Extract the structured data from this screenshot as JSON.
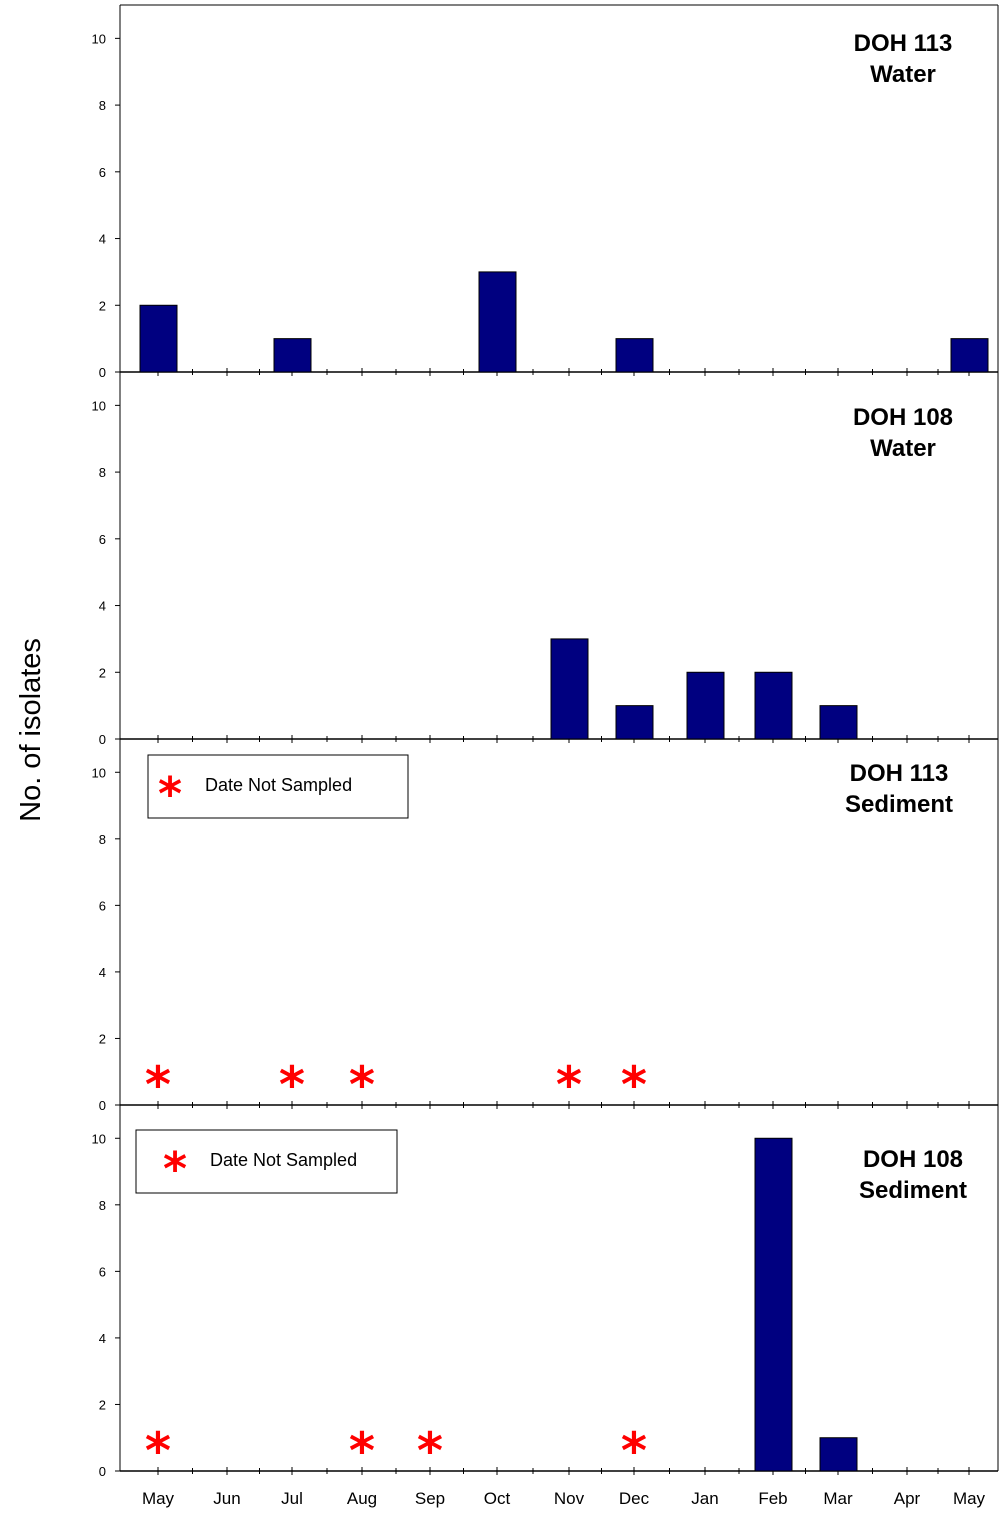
{
  "figure": {
    "ylabel": "No. of isolates"
  },
  "chart_data": [
    {
      "type": "bar",
      "title_lines": [
        "DOH 113",
        "Water"
      ],
      "categories": [
        "May",
        "Jun",
        "Jul",
        "Aug",
        "Sep",
        "Oct",
        "Nov",
        "Dec",
        "Jan",
        "Feb",
        "Mar",
        "Apr",
        "May"
      ],
      "values": [
        2,
        0,
        1,
        0,
        0,
        3,
        0,
        1,
        0,
        0,
        0,
        0,
        1
      ],
      "ylim": [
        0,
        11
      ],
      "yticks": [
        0,
        2,
        4,
        6,
        8,
        10
      ],
      "not_sampled": [],
      "legend": null,
      "bar_color": "#000080"
    },
    {
      "type": "bar",
      "title_lines": [
        "DOH 108",
        "Water"
      ],
      "categories": [
        "May",
        "Jun",
        "Jul",
        "Aug",
        "Sep",
        "Oct",
        "Nov",
        "Dec",
        "Jan",
        "Feb",
        "Mar",
        "Apr",
        "May"
      ],
      "values": [
        0,
        0,
        0,
        0,
        0,
        0,
        3,
        1,
        2,
        2,
        1,
        0,
        0
      ],
      "ylim": [
        0,
        11
      ],
      "yticks": [
        0,
        2,
        4,
        6,
        8,
        10
      ],
      "not_sampled": [],
      "legend": null,
      "bar_color": "#000080"
    },
    {
      "type": "bar",
      "title_lines": [
        "DOH 113",
        "Sediment"
      ],
      "categories": [
        "May",
        "Jun",
        "Jul",
        "Aug",
        "Sep",
        "Oct",
        "Nov",
        "Dec",
        "Jan",
        "Feb",
        "Mar",
        "Apr",
        "May"
      ],
      "values": [
        0,
        0,
        0,
        0,
        0,
        0,
        0,
        0,
        0,
        0,
        0,
        0,
        0
      ],
      "ylim": [
        0,
        11
      ],
      "yticks": [
        0,
        2,
        4,
        6,
        8,
        10
      ],
      "not_sampled": [
        "May",
        "Jul",
        "Aug",
        "Nov",
        "Dec"
      ],
      "legend": "Date Not Sampled",
      "bar_color": "#000080"
    },
    {
      "type": "bar",
      "title_lines": [
        "DOH 108",
        "Sediment"
      ],
      "categories": [
        "May",
        "Jun",
        "Jul",
        "Aug",
        "Sep",
        "Oct",
        "Nov",
        "Dec",
        "Jan",
        "Feb",
        "Mar",
        "Apr",
        "May"
      ],
      "values": [
        0,
        0,
        0,
        0,
        0,
        0,
        0,
        0,
        0,
        10,
        1,
        0,
        0
      ],
      "ylim": [
        0,
        11
      ],
      "yticks": [
        0,
        2,
        4,
        6,
        8,
        10
      ],
      "not_sampled": [
        "May",
        "Aug",
        "Sep",
        "Dec"
      ],
      "legend": "Date Not Sampled",
      "bar_color": "#000080"
    }
  ],
  "colors": {
    "bar": "#000080",
    "marker": "#ff0000",
    "axis": "#000000"
  },
  "marker_glyph": "*"
}
